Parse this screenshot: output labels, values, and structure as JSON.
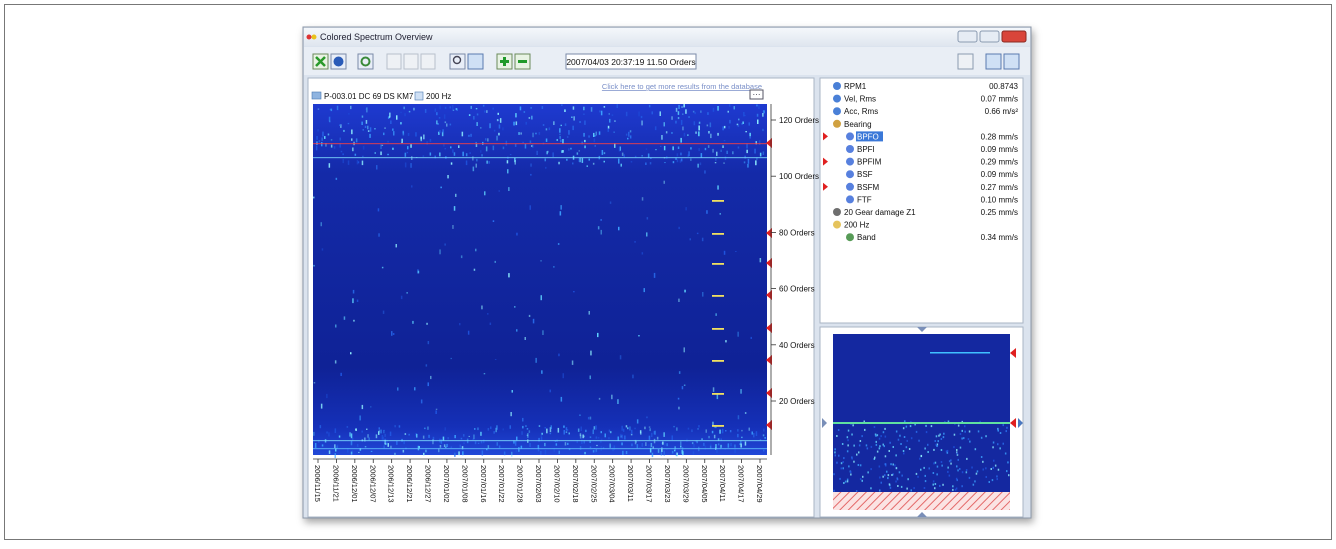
{
  "window": {
    "title": "Colored Spectrum Overview"
  },
  "toolbar": {
    "timestamp": "2007/04/03 20:37:19  11.50 Orders"
  },
  "spectrum": {
    "link": "Click here to get more results from the database",
    "header": "P-003.01 DC 69  DS KM7",
    "band": "200 Hz",
    "axis_labels": [
      "120 Orders",
      "100 Orders",
      "80 Orders",
      "60 Orders",
      "40 Orders",
      "20 Orders"
    ],
    "dates": [
      "2006/11/15",
      "2006/11/21",
      "2006/12/01",
      "2006/12/07",
      "2006/12/13",
      "2006/12/21",
      "2006/12/27",
      "2007/01/02",
      "2007/01/08",
      "2007/01/16",
      "2007/01/22",
      "2007/01/28",
      "2007/02/03",
      "2007/02/10",
      "2007/02/18",
      "2007/02/25",
      "2007/03/04",
      "2007/03/11",
      "2007/03/17",
      "2007/03/23",
      "2007/03/29",
      "2007/04/05",
      "2007/04/11",
      "2007/04/17",
      "2007/04/29"
    ]
  },
  "tree": {
    "items": [
      {
        "label": "RPM1",
        "value": "00.8743"
      },
      {
        "label": "Vel, Rms",
        "value": "0.07 mm/s"
      },
      {
        "label": "Acc, Rms",
        "value": "0.66 m/s²"
      },
      {
        "label": "Bearing"
      },
      {
        "label": "BPFO",
        "value": "0.28 mm/s"
      },
      {
        "label": "BPFI",
        "value": "0.09 mm/s"
      },
      {
        "label": "BPFIM",
        "value": "0.29 mm/s"
      },
      {
        "label": "BSF",
        "value": "0.09 mm/s"
      },
      {
        "label": "BSFM",
        "value": "0.27 mm/s"
      },
      {
        "label": "FTF",
        "value": "0.10 mm/s"
      },
      {
        "label": "20 Gear damage Z1",
        "value": "0.25 mm/s"
      },
      {
        "label": "200 Hz"
      },
      {
        "label": "Band",
        "value": "0.34 mm/s"
      }
    ]
  }
}
